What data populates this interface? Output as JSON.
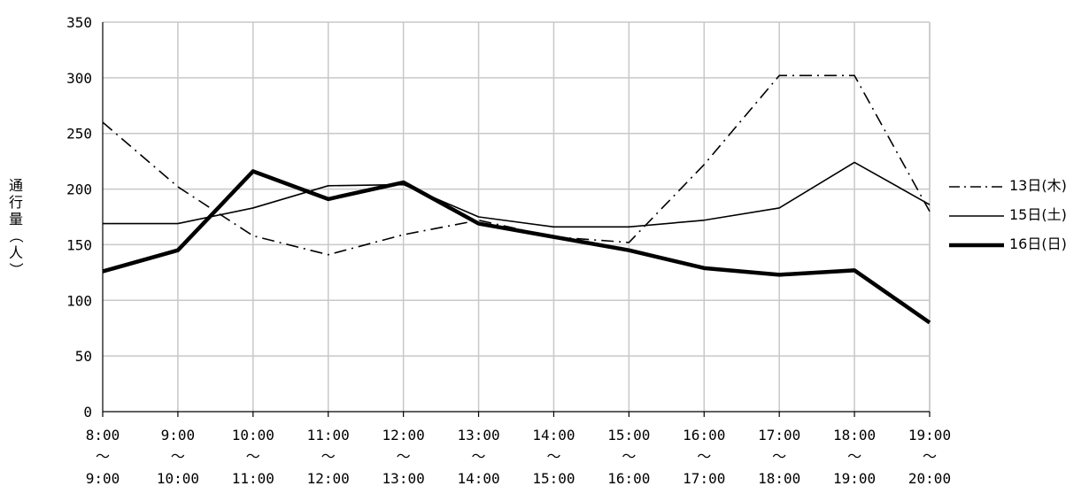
{
  "chart_data": {
    "type": "line",
    "ylabel": "通行量（人）",
    "ylim": [
      0,
      350
    ],
    "yticks": [
      "0",
      "50",
      "100",
      "150",
      "200",
      "250",
      "300",
      "350"
    ],
    "categories": [
      {
        "from": "8:00",
        "sep": "～",
        "to": "9:00"
      },
      {
        "from": "9:00",
        "sep": "～",
        "to": "10:00"
      },
      {
        "from": "10:00",
        "sep": "～",
        "to": "11:00"
      },
      {
        "from": "11:00",
        "sep": "～",
        "to": "12:00"
      },
      {
        "from": "12:00",
        "sep": "～",
        "to": "13:00"
      },
      {
        "from": "13:00",
        "sep": "～",
        "to": "14:00"
      },
      {
        "from": "14:00",
        "sep": "～",
        "to": "15:00"
      },
      {
        "from": "15:00",
        "sep": "～",
        "to": "16:00"
      },
      {
        "from": "16:00",
        "sep": "～",
        "to": "17:00"
      },
      {
        "from": "17:00",
        "sep": "～",
        "to": "18:00"
      },
      {
        "from": "18:00",
        "sep": "～",
        "to": "19:00"
      },
      {
        "from": "19:00",
        "sep": "～",
        "to": "20:00"
      }
    ],
    "grid": true,
    "legend_position": "right",
    "series": [
      {
        "name": "13日(木)",
        "style": "dash-dot",
        "color": "#000000",
        "values": [
          260,
          202,
          158,
          141,
          159,
          172,
          157,
          152,
          222,
          302,
          302,
          180
        ]
      },
      {
        "name": "15日(土)",
        "style": "thin-solid",
        "color": "#000000",
        "values": [
          169,
          169,
          183,
          203,
          204,
          175,
          166,
          166,
          172,
          183,
          224,
          186
        ]
      },
      {
        "name": "16日(日)",
        "style": "thick-solid",
        "color": "#000000",
        "values": [
          126,
          145,
          216,
          191,
          206,
          169,
          157,
          145,
          129,
          123,
          127,
          80
        ]
      }
    ]
  }
}
